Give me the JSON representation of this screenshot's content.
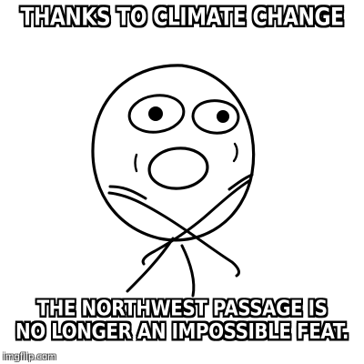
{
  "meme": {
    "top_text": "THANKS TO CLIMATE CHANGE",
    "bottom_text_line1": "THE NORTHWEST PASSAGE IS",
    "bottom_text_line2": "NO LONGER AN IMPOSSIBLE FEAT.",
    "watermark": "imgflip.com",
    "character_icon": "challenge-accepted-rage-face"
  }
}
